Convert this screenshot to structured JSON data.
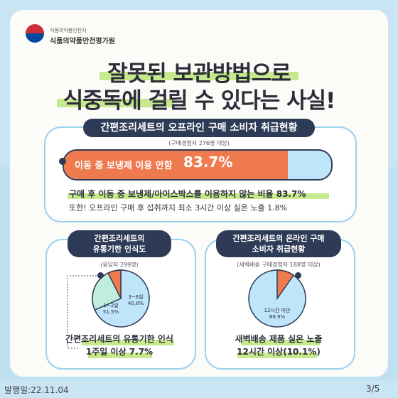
{
  "org": {
    "sub": "식품의약품안전처",
    "name": "식품의약품안전평가원"
  },
  "headline": {
    "line1": "잘못된 보관방법으로",
    "line2": "식중독에 걸릴 수 있다는 사실!"
  },
  "offline": {
    "title": "간편조리세트의 오프라인 구매 소비자 취급현황",
    "note": "(구매경험자 276명 대상)",
    "bar_label": "이동 중 보냉제 이용 안함",
    "bar_value": "83.7%",
    "bar_fraction": 0.837,
    "stat1": "구매 후 이동 중 보냉제/아이스박스를 이용하지 않는 비율 83.7%",
    "stat2": "또한! 오프라인 구매 후 섭취까지 최소 3시간 이상 실온 노출 1.8%"
  },
  "expiry": {
    "title_line1": "간편조리세트의",
    "title_line2": "유통기한 인식도",
    "note": "(응답자 299명)",
    "slices": [
      {
        "label": "3~6일",
        "value": "40.8%"
      },
      {
        "label": "1~2일",
        "value": "51.5%"
      }
    ],
    "caption_line1": "간편조리세트의 유통기한 인식",
    "caption_line2": "1주일 이상 7.7%"
  },
  "online": {
    "title_line1": "간편조리세트의 온라인 구매",
    "title_line2": "소비자 취급현황",
    "note": "(새벽배송 구매경험자 188명 대상)",
    "slice": {
      "label": "12시간 미만",
      "value": "89.9%"
    },
    "caption_line1": "새벽배송 제품 실온 노출",
    "caption_line2": "12시간 이상(10.1%)"
  },
  "colors": {
    "navy": "#2e3b57",
    "orange": "#ef7a4e",
    "light_blue": "#bfe5fa",
    "mint": "#bfeedd",
    "highlight_green": "#c6e98d"
  },
  "footer": {
    "date": "발행일:22.11.04",
    "page": "3/5"
  }
}
